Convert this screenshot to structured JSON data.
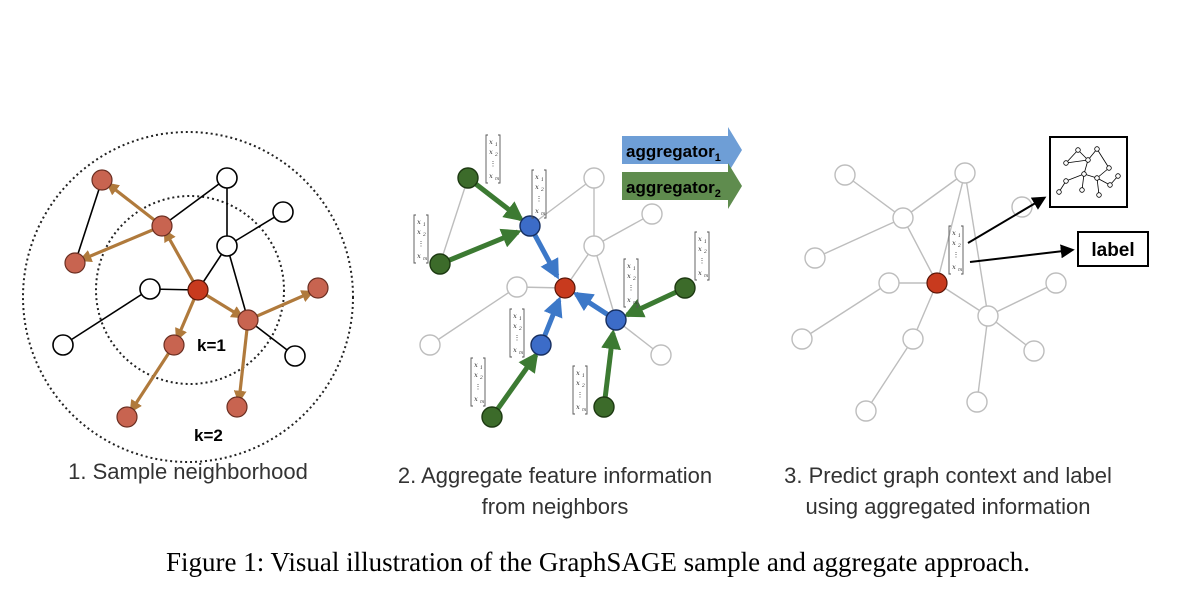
{
  "panels": [
    {
      "caption_line1": "1. Sample neighborhood",
      "caption_line2": ""
    },
    {
      "caption_line1": "2. Aggregate feature information",
      "caption_line2": "from neighbors"
    },
    {
      "caption_line1": "3. Predict graph context and label",
      "caption_line2": "using aggregated information"
    }
  ],
  "labels": {
    "k1": "k=1",
    "k2": "k=2",
    "aggregator1": "aggregator",
    "aggregator1_sub": "1",
    "aggregator2": "aggregator",
    "aggregator2_sub": "2",
    "label_box": "label"
  },
  "vector": {
    "rows": [
      "x",
      "x",
      "⋮",
      "x"
    ],
    "subs": [
      "1",
      "2",
      "",
      "m"
    ]
  },
  "figure_caption": "Figure 1: Visual illustration of the GraphSAGE sample and aggregate approach.",
  "colors": {
    "target": "#c83a1e",
    "sampled": "#c86450",
    "sample_arrow": "#b07a3c",
    "agg1": "#3c78c8",
    "agg2": "#3c7a32",
    "grey_edge": "#bdbdbd"
  },
  "icons": [
    "graph-context-icon"
  ]
}
